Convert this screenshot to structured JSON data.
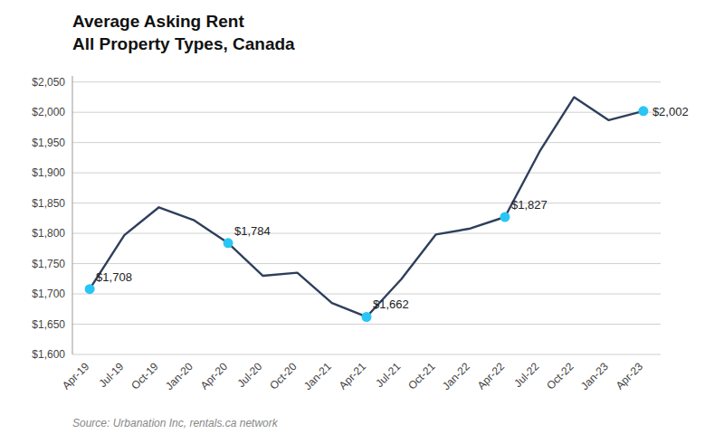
{
  "chart_data": {
    "type": "line",
    "title": "Average Asking Rent",
    "subtitle": "All Property Types, Canada",
    "source": "Source: Urbanation Inc, rentals.ca network",
    "categories": [
      "Apr-19",
      "Jul-19",
      "Oct-19",
      "Jan-20",
      "Apr-20",
      "Jul-20",
      "Oct-20",
      "Jan-21",
      "Apr-21",
      "Jul-21",
      "Oct-21",
      "Jan-22",
      "Apr-22",
      "Jul-22",
      "Oct-22",
      "Jan-23",
      "Apr-23"
    ],
    "values": [
      1708,
      1797,
      1843,
      1822,
      1784,
      1730,
      1735,
      1685,
      1662,
      1724,
      1798,
      1808,
      1827,
      1935,
      2025,
      1987,
      2002
    ],
    "color": "#2e3f5c",
    "annotations": [
      {
        "category": "Apr-19",
        "value": 1708,
        "text": "$1,708",
        "color": "#29c5f6"
      },
      {
        "category": "Apr-20",
        "value": 1784,
        "text": "$1,784",
        "color": "#29c5f6"
      },
      {
        "category": "Apr-21",
        "value": 1662,
        "text": "$1,662",
        "color": "#29c5f6"
      },
      {
        "category": "Apr-22",
        "value": 1827,
        "text": "$1,827",
        "color": "#29c5f6"
      },
      {
        "category": "Apr-23",
        "value": 2002,
        "text": "$2,002",
        "color": "#29c5f6"
      }
    ],
    "ylim": [
      1600,
      2060
    ],
    "yticks": [
      {
        "value": 1600,
        "label": "$1,600"
      },
      {
        "value": 1650,
        "label": "$1,650"
      },
      {
        "value": 1700,
        "label": "$1,700"
      },
      {
        "value": 1750,
        "label": "$1,750"
      },
      {
        "value": 1800,
        "label": "$1,800"
      },
      {
        "value": 1850,
        "label": "$1,850"
      },
      {
        "value": 1900,
        "label": "$1,900"
      },
      {
        "value": 1950,
        "label": "$1,950"
      },
      {
        "value": 2000,
        "label": "$2,000"
      },
      {
        "value": 2050,
        "label": "$2,050"
      }
    ],
    "grid": true
  }
}
